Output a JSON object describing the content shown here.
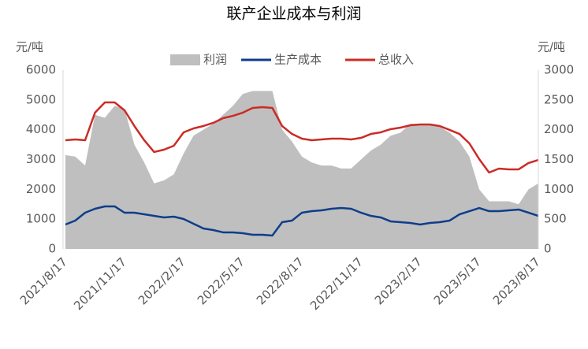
{
  "chart_data": {
    "type": "line",
    "title": "联产企业成本与利润",
    "y_label": "元/吨",
    "y2_label": "元/吨",
    "categories": [
      "2021/8/17",
      null,
      null,
      null,
      null,
      null,
      "2021/11/17",
      null,
      null,
      null,
      null,
      null,
      "2022/2/17",
      null,
      null,
      null,
      null,
      null,
      "2022/5/17",
      null,
      null,
      null,
      null,
      null,
      "2022/8/17",
      null,
      null,
      null,
      null,
      null,
      "2022/11/17",
      null,
      null,
      null,
      null,
      null,
      "2023/2/17",
      null,
      null,
      null,
      null,
      null,
      "2023/5/17",
      null,
      null,
      null,
      null,
      null,
      "2023/8/17"
    ],
    "series": [
      {
        "name": "利润",
        "type": "area",
        "color": "#bfbfbf",
        "axis": "y",
        "values": [
          3150,
          3100,
          2800,
          4500,
          4400,
          4800,
          4700,
          3500,
          2900,
          2200,
          2300,
          2500,
          3200,
          3800,
          4000,
          4200,
          4500,
          4800,
          5200,
          5300,
          5300,
          5300,
          4000,
          3600,
          3100,
          2900,
          2800,
          2800,
          2700,
          2700,
          3000,
          3300,
          3500,
          3800,
          3900,
          4200,
          4200,
          4200,
          4100,
          3900,
          3600,
          3100,
          2000,
          1600,
          1600,
          1600,
          1500,
          2000,
          2200
        ]
      },
      {
        "name": "生产成本",
        "type": "line",
        "color": "#0e3d8a",
        "axis": "y2",
        "values": [
          410,
          476,
          608,
          674,
          714,
          714,
          608,
          608,
          581,
          555,
          529,
          542,
          502,
          423,
          344,
          317,
          278,
          278,
          264,
          238,
          238,
          225,
          449,
          476,
          608,
          634,
          648,
          674,
          687,
          674,
          608,
          555,
          529,
          463,
          449,
          436,
          410,
          436,
          449,
          476,
          581,
          634,
          687,
          634,
          634,
          648,
          661,
          608,
          555
        ]
      },
      {
        "name": "总收入",
        "type": "line",
        "color": "#cc2b25",
        "axis": "y2",
        "values": [
          1824,
          1837,
          1824,
          2286,
          2458,
          2458,
          2326,
          2062,
          1824,
          1626,
          1665,
          1731,
          1956,
          2022,
          2062,
          2115,
          2194,
          2233,
          2286,
          2366,
          2379,
          2366,
          2062,
          1929,
          1850,
          1824,
          1837,
          1850,
          1850,
          1837,
          1863,
          1929,
          1956,
          2009,
          2035,
          2075,
          2088,
          2088,
          2062,
          1996,
          1929,
          1771,
          1507,
          1282,
          1348,
          1335,
          1335,
          1441,
          1493
        ]
      }
    ],
    "ylim": [
      0,
      6000
    ],
    "yticks": [
      0,
      1000,
      2000,
      3000,
      4000,
      5000,
      6000
    ],
    "y2lim": [
      0,
      3000
    ],
    "y2ticks": [
      0,
      500,
      1000,
      1500,
      2000,
      2500,
      3000
    ]
  }
}
